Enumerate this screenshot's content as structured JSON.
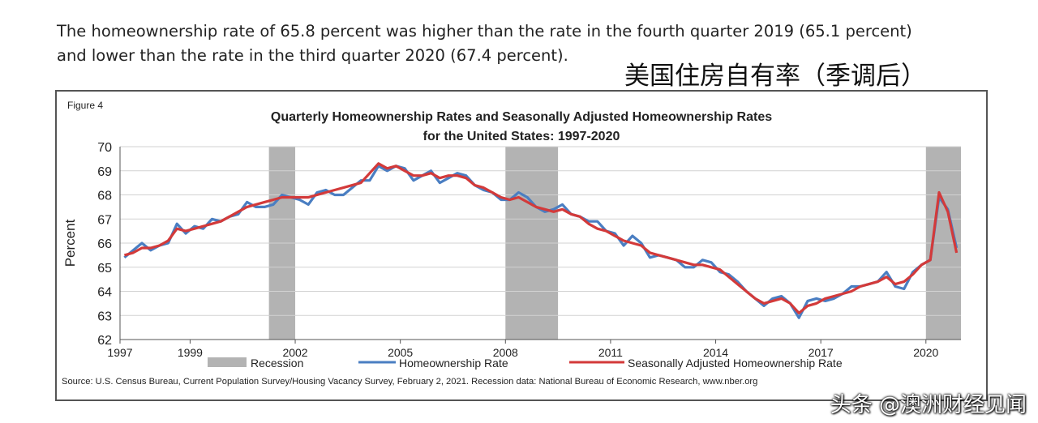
{
  "intro": {
    "line1": "The homeownership rate of 65.8 percent was higher than the rate in the fourth quarter 2019 (65.1 percent)",
    "line2": "and lower than the rate in the third quarter 2020 (67.4 percent)."
  },
  "cn_title": "美国住房自有率（季调后）",
  "watermark": "头条 @澳洲财经见闻",
  "colors": {
    "recession": "#b3b3b3",
    "unadjusted": "#4a7ec2",
    "adjusted": "#d33a3a"
  },
  "chart_data": {
    "type": "line",
    "figure_label": "Figure 4",
    "title_line1": "Quarterly Homeownership Rates and Seasonally Adjusted Homeownership Rates",
    "title_line2": "for the United States: 1997-2020",
    "ylabel": "Percent",
    "ylim": [
      62,
      70
    ],
    "yticks": [
      "62",
      "63",
      "64",
      "65",
      "66",
      "67",
      "68",
      "69",
      "70"
    ],
    "x_start": 1997,
    "x_end": 2021,
    "xticks": [
      "1997",
      "1999",
      "2002",
      "2005",
      "2008",
      "2011",
      "2014",
      "2017",
      "2020"
    ],
    "recessions": [
      [
        2001.25,
        2002.0
      ],
      [
        2008.0,
        2009.5
      ],
      [
        2020.0,
        2021.0
      ]
    ],
    "legend": {
      "recession": "Recession",
      "unadjusted": "Homeownership Rate",
      "adjusted": "Seasonally Adjusted Homeownership Rate"
    },
    "source": "Source: U.S. Census Bureau, Current Population Survey/Housing Vacancy Survey, February 2, 2021. Recession data: National Bureau of Economic Research, www.nber.org",
    "series": [
      {
        "name": "Homeownership Rate",
        "values": [
          65.4,
          65.7,
          66.0,
          65.7,
          65.9,
          66.0,
          66.8,
          66.4,
          66.7,
          66.6,
          67.0,
          66.9,
          67.1,
          67.2,
          67.7,
          67.5,
          67.5,
          67.6,
          68.0,
          67.9,
          67.8,
          67.6,
          68.1,
          68.2,
          68.0,
          68.0,
          68.3,
          68.6,
          68.6,
          69.2,
          69.0,
          69.2,
          69.1,
          68.6,
          68.8,
          69.0,
          68.5,
          68.7,
          68.9,
          68.8,
          68.4,
          68.2,
          68.1,
          67.8,
          67.8,
          68.1,
          67.9,
          67.5,
          67.3,
          67.4,
          67.6,
          67.2,
          67.1,
          66.9,
          66.9,
          66.5,
          66.4,
          65.9,
          66.3,
          66.0,
          65.4,
          65.5,
          65.4,
          65.3,
          65.0,
          65.0,
          65.3,
          65.2,
          64.8,
          64.7,
          64.4,
          64.0,
          63.7,
          63.4,
          63.7,
          63.8,
          63.5,
          62.9,
          63.6,
          63.7,
          63.6,
          63.7,
          63.9,
          64.2,
          64.2,
          64.3,
          64.4,
          64.8,
          64.2,
          64.1,
          64.8,
          65.1,
          65.3,
          67.9,
          67.4,
          65.8
        ]
      },
      {
        "name": "Seasonally Adjusted Homeownership Rate",
        "values": [
          65.5,
          65.6,
          65.8,
          65.8,
          65.9,
          66.1,
          66.6,
          66.5,
          66.6,
          66.7,
          66.8,
          66.9,
          67.1,
          67.3,
          67.5,
          67.6,
          67.7,
          67.8,
          67.9,
          67.9,
          67.9,
          67.9,
          68.0,
          68.1,
          68.2,
          68.3,
          68.4,
          68.5,
          68.9,
          69.3,
          69.1,
          69.2,
          69.0,
          68.8,
          68.8,
          68.9,
          68.7,
          68.8,
          68.8,
          68.7,
          68.4,
          68.3,
          68.1,
          67.9,
          67.8,
          67.9,
          67.7,
          67.5,
          67.4,
          67.3,
          67.4,
          67.2,
          67.1,
          66.8,
          66.6,
          66.5,
          66.3,
          66.1,
          66.0,
          65.9,
          65.6,
          65.5,
          65.4,
          65.3,
          65.2,
          65.1,
          65.1,
          65.0,
          64.9,
          64.6,
          64.3,
          64.0,
          63.7,
          63.5,
          63.6,
          63.7,
          63.5,
          63.1,
          63.4,
          63.5,
          63.7,
          63.8,
          63.9,
          64.0,
          64.2,
          64.3,
          64.4,
          64.6,
          64.3,
          64.4,
          64.7,
          65.1,
          65.3,
          68.1,
          67.3,
          65.6
        ]
      }
    ]
  }
}
